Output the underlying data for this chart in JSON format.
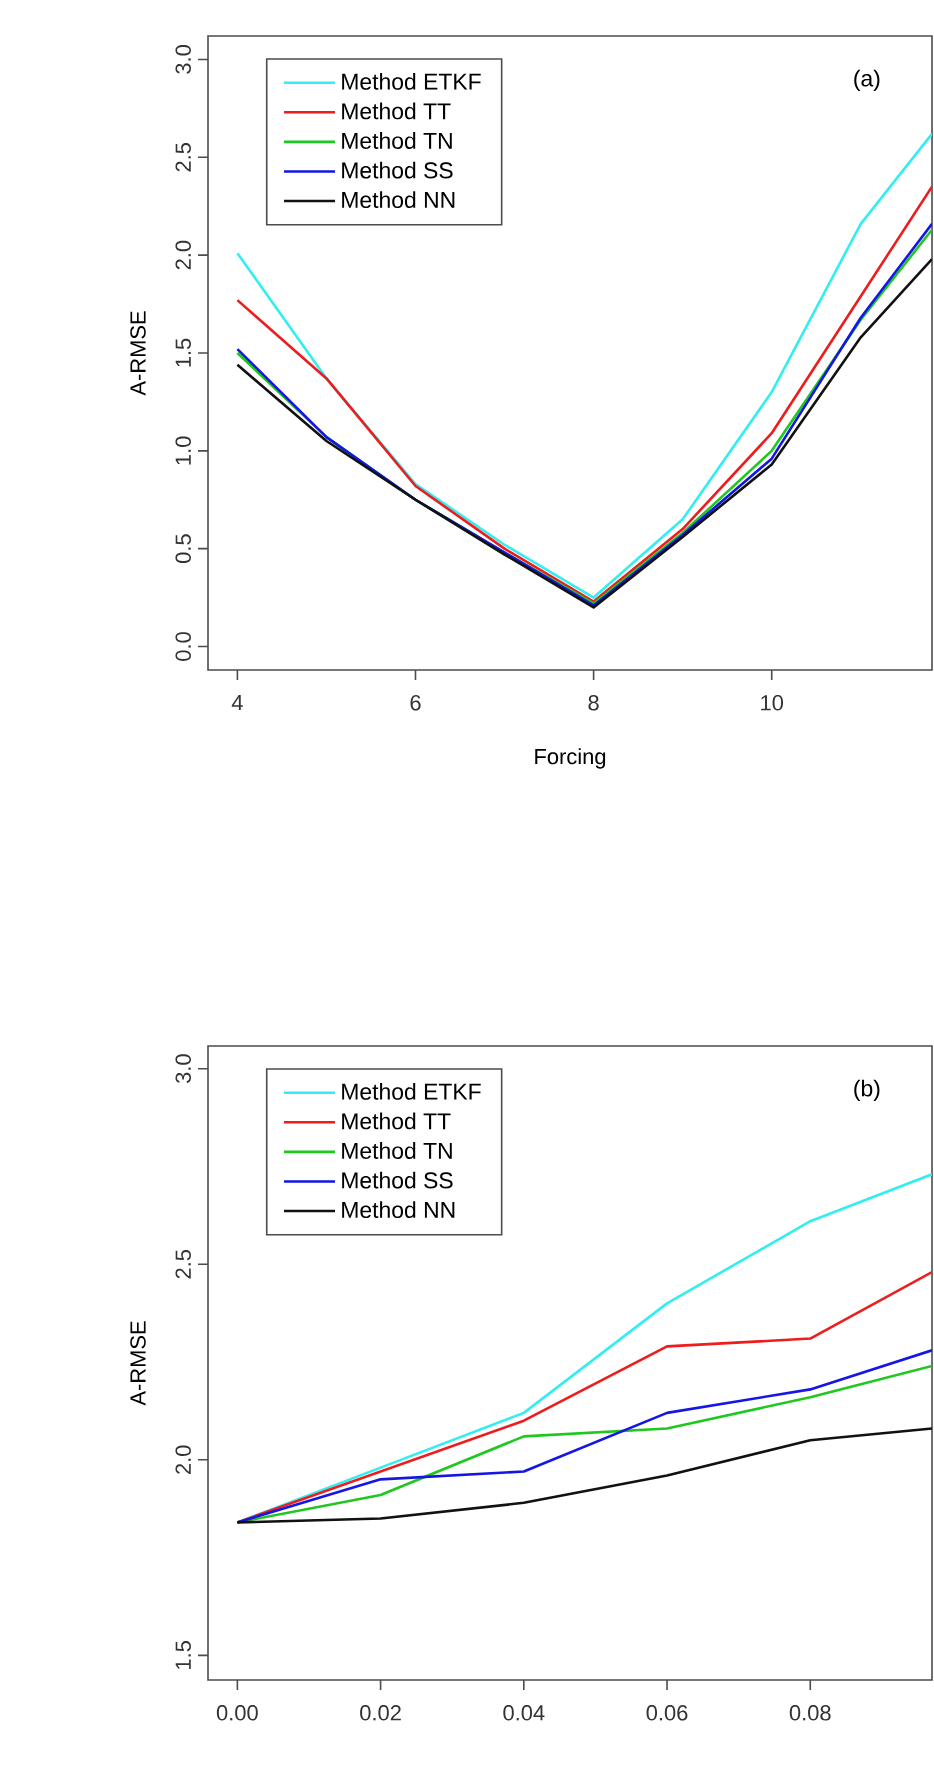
{
  "chart_data": [
    {
      "type": "line",
      "xlabel": "Forcing",
      "ylabel": "A-RMSE",
      "annotations": [
        "(a)"
      ],
      "legend": "top left",
      "line_style": "solid",
      "x": [
        4,
        5,
        6,
        7,
        8,
        9,
        10,
        11,
        11.8
      ],
      "xlim": [
        3.67,
        11.8
      ],
      "ylim": [
        -0.12,
        3.12
      ],
      "xticks": [
        4,
        6,
        8,
        10
      ],
      "yticks": [
        {
          "value": 0,
          "label": "0.0"
        },
        {
          "value": 0.5,
          "label": "0.5"
        },
        {
          "value": 1,
          "label": "1.0"
        },
        {
          "value": 1.5,
          "label": "1.5"
        },
        {
          "value": 2,
          "label": "2.0"
        },
        {
          "value": 2.5,
          "label": "2.5"
        },
        {
          "value": 3,
          "label": "3.0"
        }
      ],
      "series": [
        {
          "name": "Method ETKF",
          "color": "#33eef0",
          "values": [
            2.01,
            1.37,
            0.83,
            0.52,
            0.25,
            0.65,
            1.3,
            2.16,
            2.62
          ]
        },
        {
          "name": "Method TT",
          "color": "#ee1c1c",
          "values": [
            1.77,
            1.37,
            0.82,
            0.5,
            0.23,
            0.6,
            1.09,
            1.79,
            2.35
          ]
        },
        {
          "name": "Method TN",
          "color": "#1ec81e",
          "values": [
            1.5,
            1.07,
            0.75,
            0.48,
            0.22,
            0.58,
            1.0,
            1.67,
            2.13
          ]
        },
        {
          "name": "Method SS",
          "color": "#1515e6",
          "values": [
            1.52,
            1.07,
            0.75,
            0.48,
            0.21,
            0.57,
            0.96,
            1.68,
            2.16
          ]
        },
        {
          "name": "Method NN",
          "color": "#111111",
          "values": [
            1.44,
            1.05,
            0.75,
            0.47,
            0.2,
            0.56,
            0.93,
            1.58,
            1.98
          ]
        }
      ]
    },
    {
      "type": "line",
      "ylabel": "A-RMSE",
      "annotations": [
        "(b)"
      ],
      "legend": "top left",
      "line_style": "solid",
      "x": [
        0,
        0.02,
        0.04,
        0.06,
        0.08,
        0.097
      ],
      "xlim": [
        -0.0041,
        0.097
      ],
      "ylim": [
        1.437,
        3.058
      ],
      "xticks": [
        {
          "value": 0,
          "label": "0.00"
        },
        {
          "value": 0.02,
          "label": "0.02"
        },
        {
          "value": 0.04,
          "label": "0.04"
        },
        {
          "value": 0.06,
          "label": "0.06"
        },
        {
          "value": 0.08,
          "label": "0.08"
        }
      ],
      "yticks": [
        {
          "value": 1.5,
          "label": "1.5"
        },
        {
          "value": 2,
          "label": "2.0"
        },
        {
          "value": 2.5,
          "label": "2.5"
        },
        {
          "value": 3,
          "label": "3.0"
        }
      ],
      "series": [
        {
          "name": "Method ETKF",
          "color": "#33eef0",
          "values": [
            1.84,
            1.98,
            2.12,
            2.4,
            2.61,
            2.73
          ]
        },
        {
          "name": "Method TT",
          "color": "#ee1c1c",
          "values": [
            1.84,
            1.97,
            2.1,
            2.29,
            2.31,
            2.48
          ]
        },
        {
          "name": "Method TN",
          "color": "#1ec81e",
          "values": [
            1.84,
            1.91,
            2.06,
            2.08,
            2.16,
            2.24
          ]
        },
        {
          "name": "Method SS",
          "color": "#1515e6",
          "values": [
            1.84,
            1.95,
            1.97,
            2.12,
            2.18,
            2.28
          ]
        },
        {
          "name": "Method NN",
          "color": "#111111",
          "values": [
            1.84,
            1.85,
            1.89,
            1.96,
            2.05,
            2.08
          ]
        }
      ]
    }
  ]
}
